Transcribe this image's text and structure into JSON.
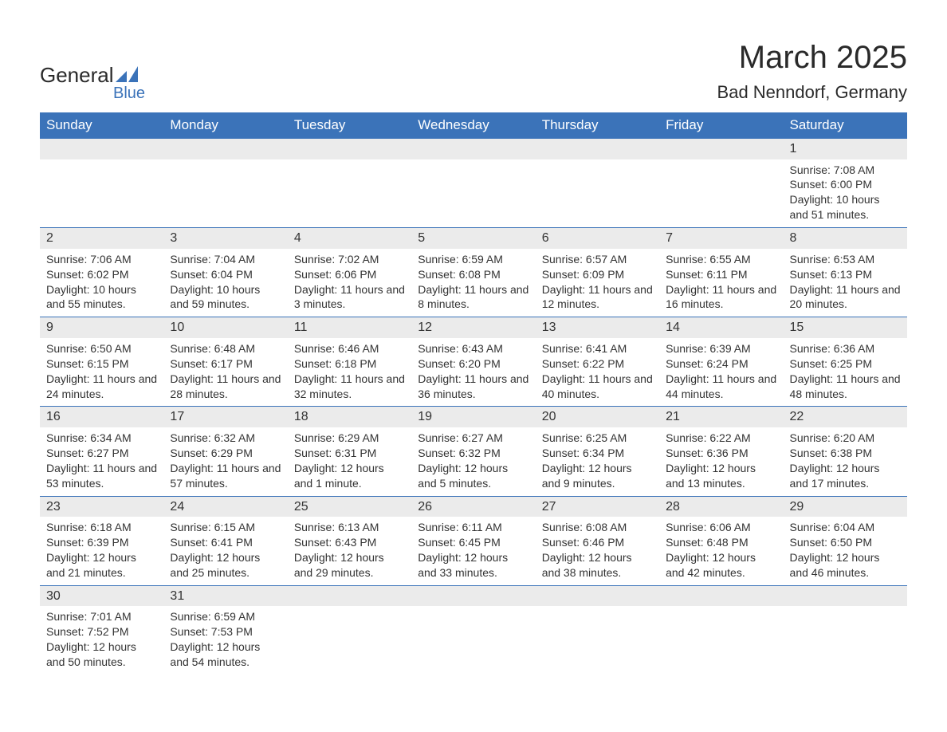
{
  "logo": {
    "main_text": "General",
    "sub_text": "Blue",
    "main_color": "#2a2a2a",
    "sub_color": "#3b73b9",
    "icon_color": "#3b73b9"
  },
  "header": {
    "month_title": "March 2025",
    "location": "Bad Nenndorf, Germany",
    "title_fontsize": 40,
    "location_fontsize": 22,
    "text_color": "#2a2a2a"
  },
  "calendar": {
    "header_bg": "#3b73b9",
    "header_text_color": "#ffffff",
    "day_number_bg": "#ebebeb",
    "border_color": "#3b73b9",
    "text_color": "#333333",
    "day_headers": [
      "Sunday",
      "Monday",
      "Tuesday",
      "Wednesday",
      "Thursday",
      "Friday",
      "Saturday"
    ],
    "weeks": [
      [
        {
          "day": "",
          "sunrise": "",
          "sunset": "",
          "daylight": ""
        },
        {
          "day": "",
          "sunrise": "",
          "sunset": "",
          "daylight": ""
        },
        {
          "day": "",
          "sunrise": "",
          "sunset": "",
          "daylight": ""
        },
        {
          "day": "",
          "sunrise": "",
          "sunset": "",
          "daylight": ""
        },
        {
          "day": "",
          "sunrise": "",
          "sunset": "",
          "daylight": ""
        },
        {
          "day": "",
          "sunrise": "",
          "sunset": "",
          "daylight": ""
        },
        {
          "day": "1",
          "sunrise": "Sunrise: 7:08 AM",
          "sunset": "Sunset: 6:00 PM",
          "daylight": "Daylight: 10 hours and 51 minutes."
        }
      ],
      [
        {
          "day": "2",
          "sunrise": "Sunrise: 7:06 AM",
          "sunset": "Sunset: 6:02 PM",
          "daylight": "Daylight: 10 hours and 55 minutes."
        },
        {
          "day": "3",
          "sunrise": "Sunrise: 7:04 AM",
          "sunset": "Sunset: 6:04 PM",
          "daylight": "Daylight: 10 hours and 59 minutes."
        },
        {
          "day": "4",
          "sunrise": "Sunrise: 7:02 AM",
          "sunset": "Sunset: 6:06 PM",
          "daylight": "Daylight: 11 hours and 3 minutes."
        },
        {
          "day": "5",
          "sunrise": "Sunrise: 6:59 AM",
          "sunset": "Sunset: 6:08 PM",
          "daylight": "Daylight: 11 hours and 8 minutes."
        },
        {
          "day": "6",
          "sunrise": "Sunrise: 6:57 AM",
          "sunset": "Sunset: 6:09 PM",
          "daylight": "Daylight: 11 hours and 12 minutes."
        },
        {
          "day": "7",
          "sunrise": "Sunrise: 6:55 AM",
          "sunset": "Sunset: 6:11 PM",
          "daylight": "Daylight: 11 hours and 16 minutes."
        },
        {
          "day": "8",
          "sunrise": "Sunrise: 6:53 AM",
          "sunset": "Sunset: 6:13 PM",
          "daylight": "Daylight: 11 hours and 20 minutes."
        }
      ],
      [
        {
          "day": "9",
          "sunrise": "Sunrise: 6:50 AM",
          "sunset": "Sunset: 6:15 PM",
          "daylight": "Daylight: 11 hours and 24 minutes."
        },
        {
          "day": "10",
          "sunrise": "Sunrise: 6:48 AM",
          "sunset": "Sunset: 6:17 PM",
          "daylight": "Daylight: 11 hours and 28 minutes."
        },
        {
          "day": "11",
          "sunrise": "Sunrise: 6:46 AM",
          "sunset": "Sunset: 6:18 PM",
          "daylight": "Daylight: 11 hours and 32 minutes."
        },
        {
          "day": "12",
          "sunrise": "Sunrise: 6:43 AM",
          "sunset": "Sunset: 6:20 PM",
          "daylight": "Daylight: 11 hours and 36 minutes."
        },
        {
          "day": "13",
          "sunrise": "Sunrise: 6:41 AM",
          "sunset": "Sunset: 6:22 PM",
          "daylight": "Daylight: 11 hours and 40 minutes."
        },
        {
          "day": "14",
          "sunrise": "Sunrise: 6:39 AM",
          "sunset": "Sunset: 6:24 PM",
          "daylight": "Daylight: 11 hours and 44 minutes."
        },
        {
          "day": "15",
          "sunrise": "Sunrise: 6:36 AM",
          "sunset": "Sunset: 6:25 PM",
          "daylight": "Daylight: 11 hours and 48 minutes."
        }
      ],
      [
        {
          "day": "16",
          "sunrise": "Sunrise: 6:34 AM",
          "sunset": "Sunset: 6:27 PM",
          "daylight": "Daylight: 11 hours and 53 minutes."
        },
        {
          "day": "17",
          "sunrise": "Sunrise: 6:32 AM",
          "sunset": "Sunset: 6:29 PM",
          "daylight": "Daylight: 11 hours and 57 minutes."
        },
        {
          "day": "18",
          "sunrise": "Sunrise: 6:29 AM",
          "sunset": "Sunset: 6:31 PM",
          "daylight": "Daylight: 12 hours and 1 minute."
        },
        {
          "day": "19",
          "sunrise": "Sunrise: 6:27 AM",
          "sunset": "Sunset: 6:32 PM",
          "daylight": "Daylight: 12 hours and 5 minutes."
        },
        {
          "day": "20",
          "sunrise": "Sunrise: 6:25 AM",
          "sunset": "Sunset: 6:34 PM",
          "daylight": "Daylight: 12 hours and 9 minutes."
        },
        {
          "day": "21",
          "sunrise": "Sunrise: 6:22 AM",
          "sunset": "Sunset: 6:36 PM",
          "daylight": "Daylight: 12 hours and 13 minutes."
        },
        {
          "day": "22",
          "sunrise": "Sunrise: 6:20 AM",
          "sunset": "Sunset: 6:38 PM",
          "daylight": "Daylight: 12 hours and 17 minutes."
        }
      ],
      [
        {
          "day": "23",
          "sunrise": "Sunrise: 6:18 AM",
          "sunset": "Sunset: 6:39 PM",
          "daylight": "Daylight: 12 hours and 21 minutes."
        },
        {
          "day": "24",
          "sunrise": "Sunrise: 6:15 AM",
          "sunset": "Sunset: 6:41 PM",
          "daylight": "Daylight: 12 hours and 25 minutes."
        },
        {
          "day": "25",
          "sunrise": "Sunrise: 6:13 AM",
          "sunset": "Sunset: 6:43 PM",
          "daylight": "Daylight: 12 hours and 29 minutes."
        },
        {
          "day": "26",
          "sunrise": "Sunrise: 6:11 AM",
          "sunset": "Sunset: 6:45 PM",
          "daylight": "Daylight: 12 hours and 33 minutes."
        },
        {
          "day": "27",
          "sunrise": "Sunrise: 6:08 AM",
          "sunset": "Sunset: 6:46 PM",
          "daylight": "Daylight: 12 hours and 38 minutes."
        },
        {
          "day": "28",
          "sunrise": "Sunrise: 6:06 AM",
          "sunset": "Sunset: 6:48 PM",
          "daylight": "Daylight: 12 hours and 42 minutes."
        },
        {
          "day": "29",
          "sunrise": "Sunrise: 6:04 AM",
          "sunset": "Sunset: 6:50 PM",
          "daylight": "Daylight: 12 hours and 46 minutes."
        }
      ],
      [
        {
          "day": "30",
          "sunrise": "Sunrise: 7:01 AM",
          "sunset": "Sunset: 7:52 PM",
          "daylight": "Daylight: 12 hours and 50 minutes."
        },
        {
          "day": "31",
          "sunrise": "Sunrise: 6:59 AM",
          "sunset": "Sunset: 7:53 PM",
          "daylight": "Daylight: 12 hours and 54 minutes."
        },
        {
          "day": "",
          "sunrise": "",
          "sunset": "",
          "daylight": ""
        },
        {
          "day": "",
          "sunrise": "",
          "sunset": "",
          "daylight": ""
        },
        {
          "day": "",
          "sunrise": "",
          "sunset": "",
          "daylight": ""
        },
        {
          "day": "",
          "sunrise": "",
          "sunset": "",
          "daylight": ""
        },
        {
          "day": "",
          "sunrise": "",
          "sunset": "",
          "daylight": ""
        }
      ]
    ]
  }
}
